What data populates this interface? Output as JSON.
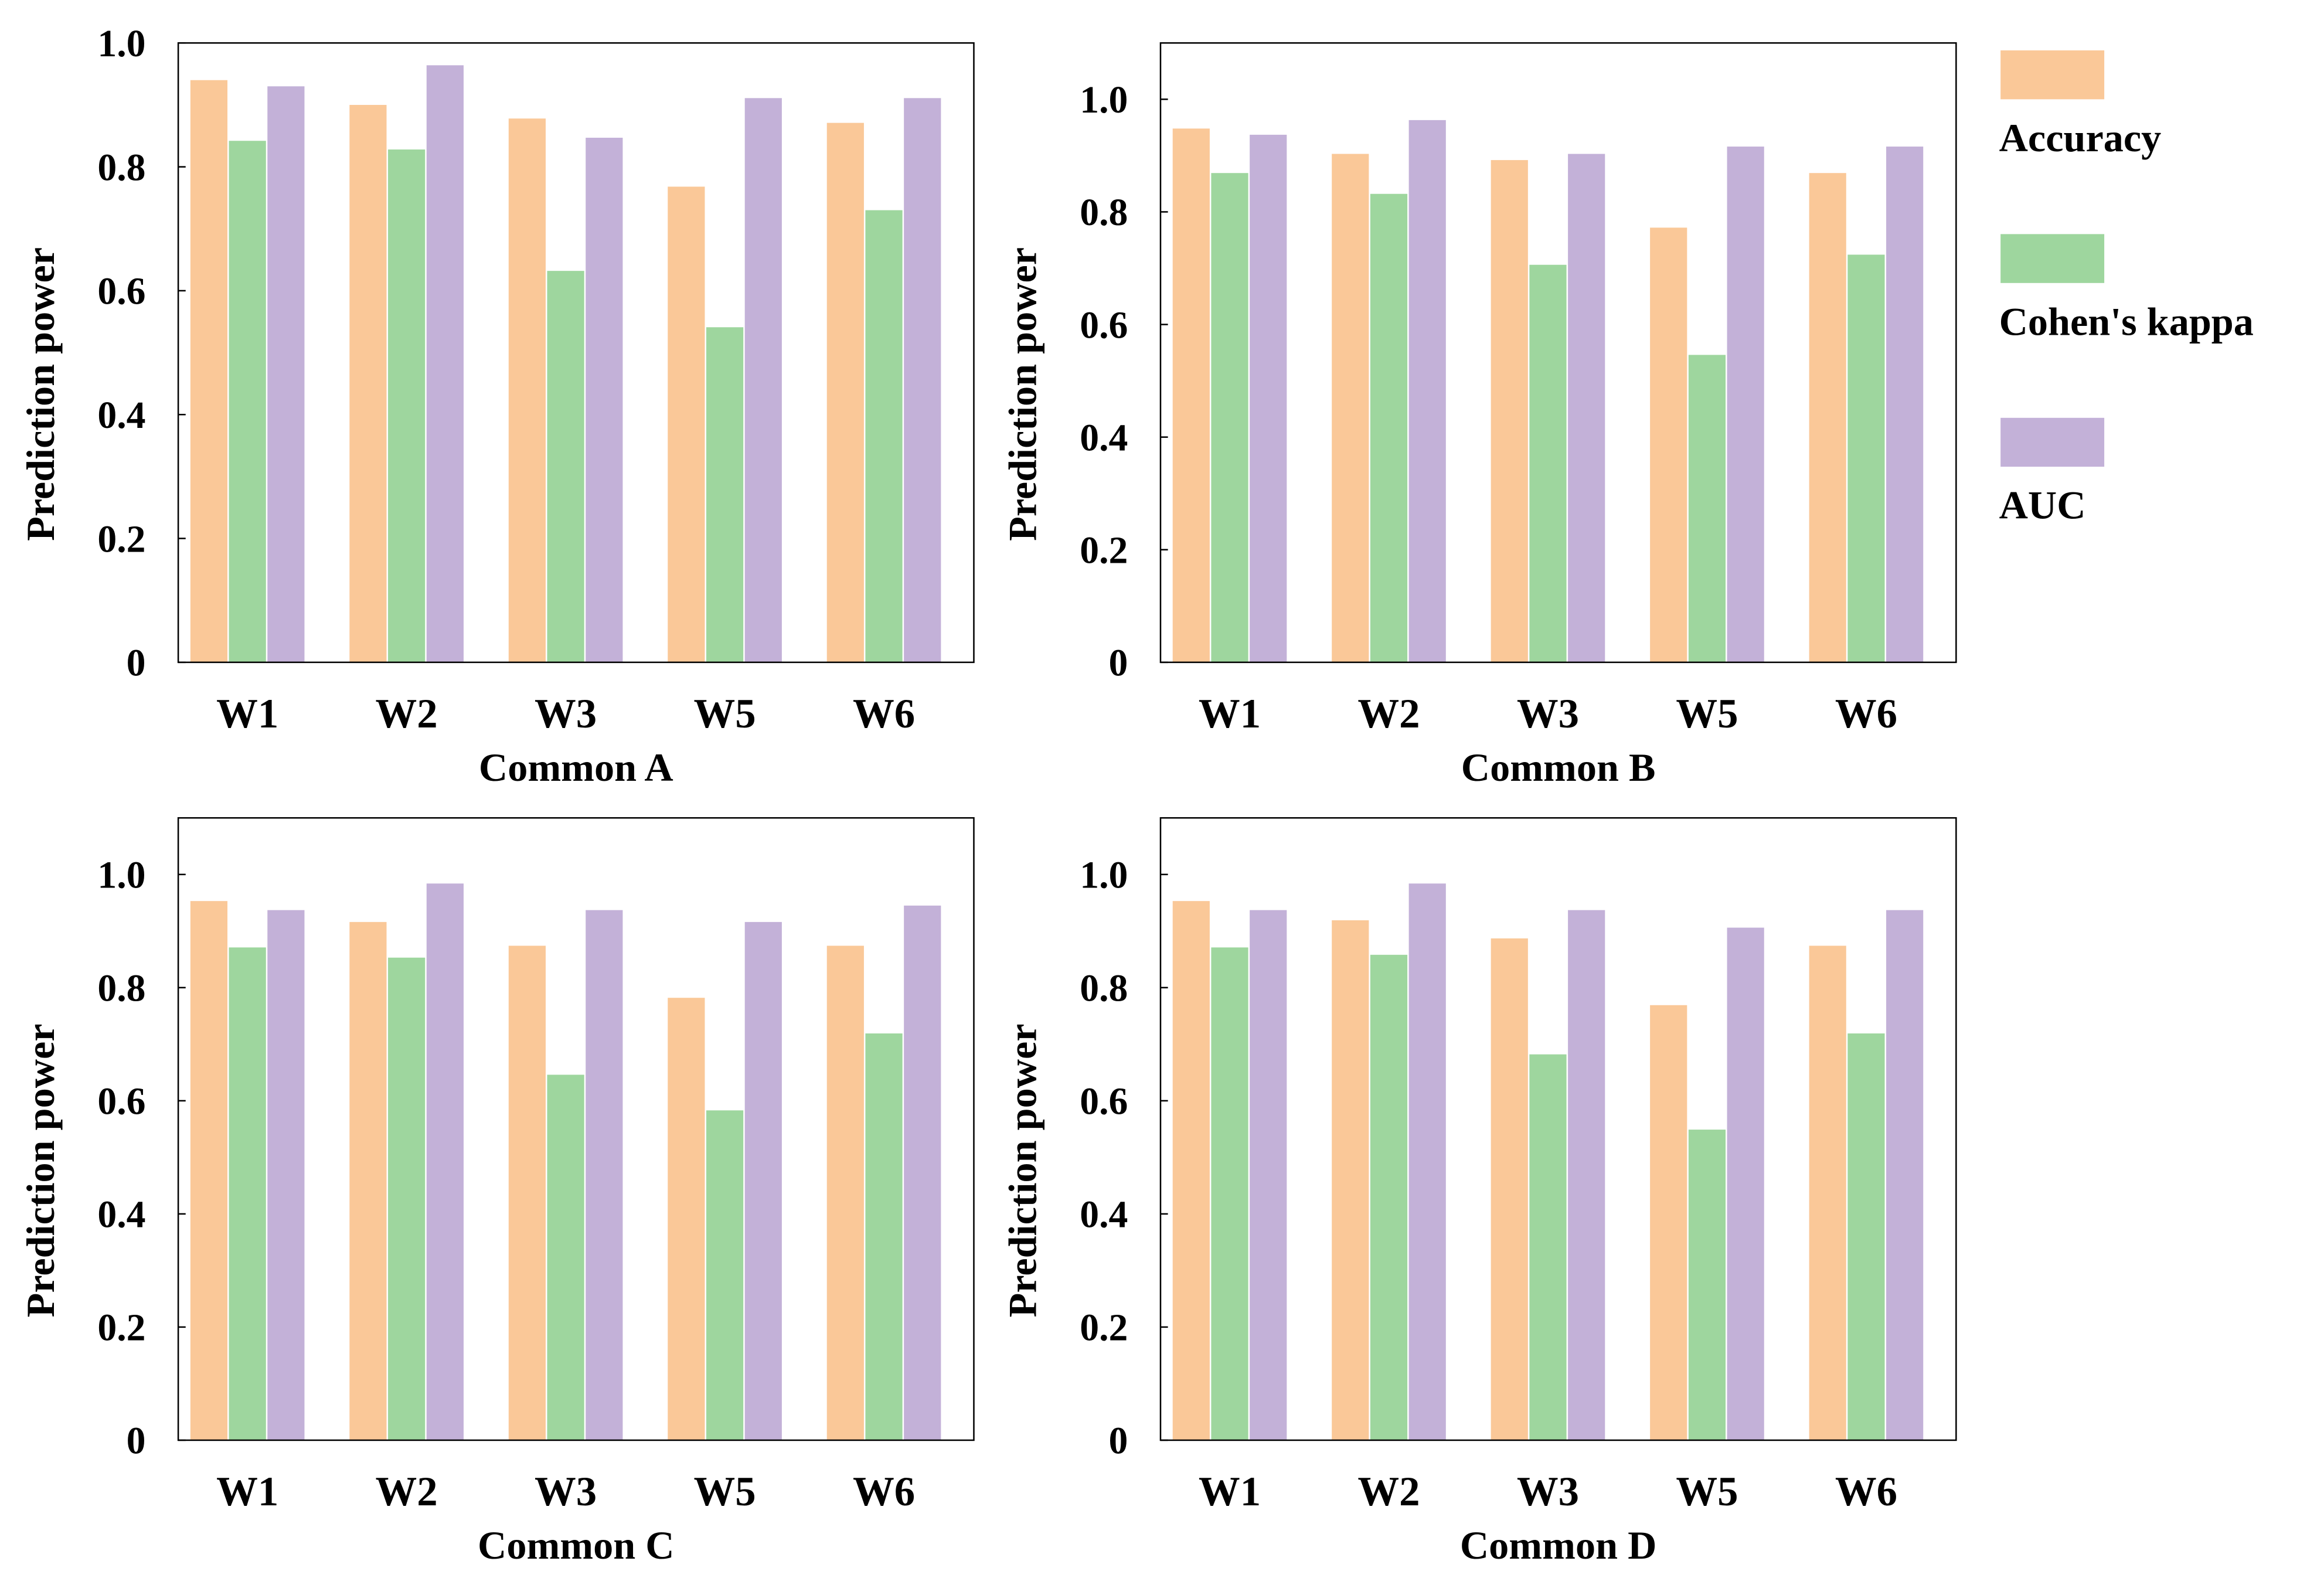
{
  "legend": {
    "placement": "right",
    "entries": [
      {
        "name": "Accuracy",
        "color": "#FAC898"
      },
      {
        "name": "Cohen's kappa",
        "color": "#9ED69E"
      },
      {
        "name": "AUC",
        "color": "#C3B1D8"
      }
    ]
  },
  "chart_data": [
    {
      "type": "bar",
      "xlabel": "Common A",
      "ylabel": "Prediction power",
      "ylim": [
        0,
        1.0
      ],
      "yticks": [
        "0",
        "0.2",
        "0.4",
        "0.6",
        "0.8",
        "1.0"
      ],
      "categories": [
        "W1",
        "W2",
        "W3",
        "W5",
        "W6"
      ],
      "series": [
        {
          "name": "Accuracy",
          "values": [
            0.94,
            0.9,
            0.878,
            0.768,
            0.871
          ]
        },
        {
          "name": "Cohen's kappa",
          "values": [
            0.842,
            0.828,
            0.632,
            0.541,
            0.73
          ]
        },
        {
          "name": "AUC",
          "values": [
            0.93,
            0.964,
            0.847,
            0.911,
            0.911
          ]
        }
      ]
    },
    {
      "type": "bar",
      "xlabel": "Common B",
      "ylabel": "Prediction power",
      "ylim": [
        0,
        1.1
      ],
      "yticks": [
        "0",
        "0.2",
        "0.4",
        "0.6",
        "0.8",
        "1.0"
      ],
      "categories": [
        "W1",
        "W2",
        "W3",
        "W5",
        "W6"
      ],
      "series": [
        {
          "name": "Accuracy",
          "values": [
            0.948,
            0.903,
            0.892,
            0.772,
            0.869
          ]
        },
        {
          "name": "Cohen's kappa",
          "values": [
            0.869,
            0.832,
            0.706,
            0.546,
            0.724
          ]
        },
        {
          "name": "AUC",
          "values": [
            0.937,
            0.963,
            0.903,
            0.916,
            0.916
          ]
        }
      ]
    },
    {
      "type": "bar",
      "xlabel": "Common C",
      "ylabel": "Prediction power",
      "ylim": [
        0,
        1.1
      ],
      "yticks": [
        "0",
        "0.2",
        "0.4",
        "0.6",
        "0.8",
        "1.0"
      ],
      "categories": [
        "W1",
        "W2",
        "W3",
        "W5",
        "W6"
      ],
      "series": [
        {
          "name": "Accuracy",
          "values": [
            0.953,
            0.916,
            0.874,
            0.782,
            0.874
          ]
        },
        {
          "name": "Cohen's kappa",
          "values": [
            0.871,
            0.853,
            0.646,
            0.583,
            0.719
          ]
        },
        {
          "name": "AUC",
          "values": [
            0.937,
            0.984,
            0.937,
            0.916,
            0.945
          ]
        }
      ]
    },
    {
      "type": "bar",
      "xlabel": "Common D",
      "ylabel": "Prediction power",
      "ylim": [
        0,
        1.1
      ],
      "yticks": [
        "0",
        "0.2",
        "0.4",
        "0.6",
        "0.8",
        "1.0"
      ],
      "categories": [
        "W1",
        "W2",
        "W3",
        "W5",
        "W6"
      ],
      "series": [
        {
          "name": "Accuracy",
          "values": [
            0.953,
            0.919,
            0.887,
            0.769,
            0.874
          ]
        },
        {
          "name": "Cohen's kappa",
          "values": [
            0.871,
            0.858,
            0.682,
            0.549,
            0.719
          ]
        },
        {
          "name": "AUC",
          "values": [
            0.937,
            0.984,
            0.937,
            0.906,
            0.937
          ]
        }
      ]
    }
  ]
}
